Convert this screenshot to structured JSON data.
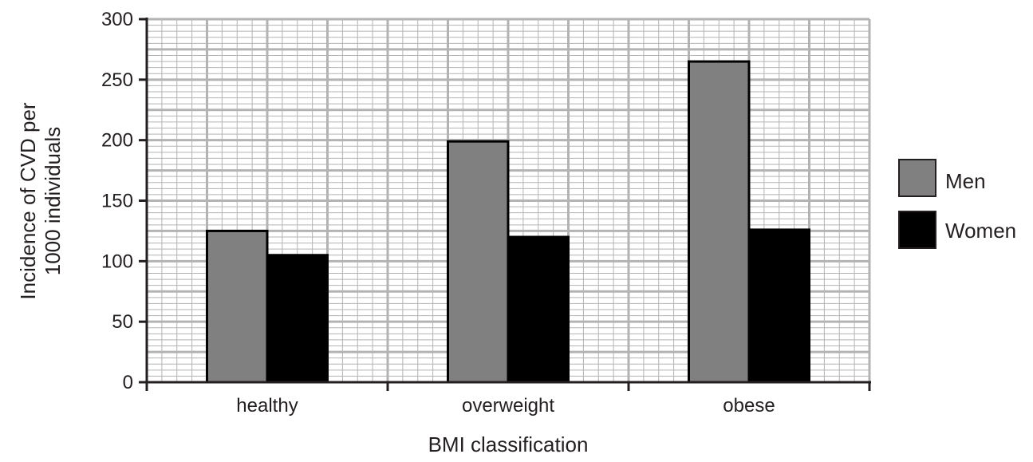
{
  "chart_data": {
    "type": "bar",
    "title": "",
    "xlabel": "BMI classification",
    "ylabel_lines": [
      "Incidence of CVD per",
      "1000 individuals"
    ],
    "categories": [
      "healthy",
      "overweight",
      "obese"
    ],
    "series": [
      {
        "name": "Men",
        "values": [
          125,
          199,
          265
        ],
        "color": "#808080"
      },
      {
        "name": "Women",
        "values": [
          105,
          120,
          126
        ],
        "color": "#000000"
      }
    ],
    "ylim": [
      0,
      300
    ],
    "yticks": [
      0,
      50,
      100,
      150,
      200,
      250,
      300
    ],
    "grid": true,
    "minor_grid": true,
    "legend_position": "right"
  },
  "colors": {
    "major_grid": "#b3b3b3",
    "minor_grid": "#b3b3b3",
    "axis": "#231f20",
    "text": "#231f20",
    "background": "#ffffff"
  }
}
